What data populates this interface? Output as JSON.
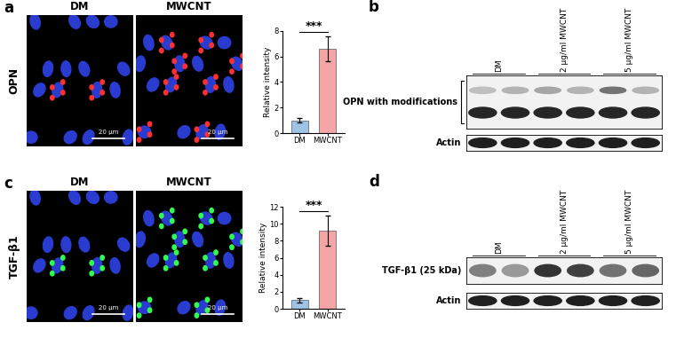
{
  "panels": [
    {
      "label": "a",
      "row_label": "OPN",
      "images": [
        {
          "title": "DM",
          "stain": "#ff3030",
          "scale_bar": "20 µm"
        },
        {
          "title": "MWCNT",
          "stain": "#ff3030",
          "scale_bar": "20 µm"
        }
      ]
    },
    {
      "label": "c",
      "row_label": "TGF-β1",
      "images": [
        {
          "title": "DM",
          "stain": "#30ff50",
          "scale_bar": "20 µm"
        },
        {
          "title": "MWCNT",
          "stain": "#30ff50",
          "scale_bar": "20 µm"
        }
      ]
    }
  ],
  "chart_data": [
    {
      "type": "bar",
      "categories": [
        "DM",
        "MWCNT"
      ],
      "values": [
        1.0,
        6.6
      ],
      "errors": [
        0.15,
        1.0
      ],
      "colors": [
        "#9dc3e6",
        "#f4a6a6"
      ],
      "y_label": "Relative intensity",
      "ylim": [
        0,
        8
      ],
      "yticks": [
        0,
        2,
        4,
        6,
        8
      ],
      "annotation": "***"
    },
    {
      "type": "bar",
      "categories": [
        "DM",
        "MWCNT"
      ],
      "values": [
        1.0,
        9.2
      ],
      "errors": [
        0.25,
        1.8
      ],
      "colors": [
        "#9dc3e6",
        "#f4a6a6"
      ],
      "y_label": "Relative intensity",
      "ylim": [
        0,
        12
      ],
      "yticks": [
        0,
        2,
        4,
        6,
        8,
        10,
        12
      ],
      "annotation": "***"
    }
  ],
  "blots": [
    {
      "label": "b",
      "lanes": [
        "DM",
        "2 µg/ml MWCNT",
        "5 µg/ml MWCNT"
      ],
      "bands": [
        "OPN with modifications",
        "Actin"
      ]
    },
    {
      "label": "d",
      "lanes": [
        "DM",
        "2 µg/ml MWCNT",
        "5 µg/ml MWCNT"
      ],
      "bands": [
        "TGF-β1 (25 kDa)",
        "Actin"
      ]
    }
  ]
}
